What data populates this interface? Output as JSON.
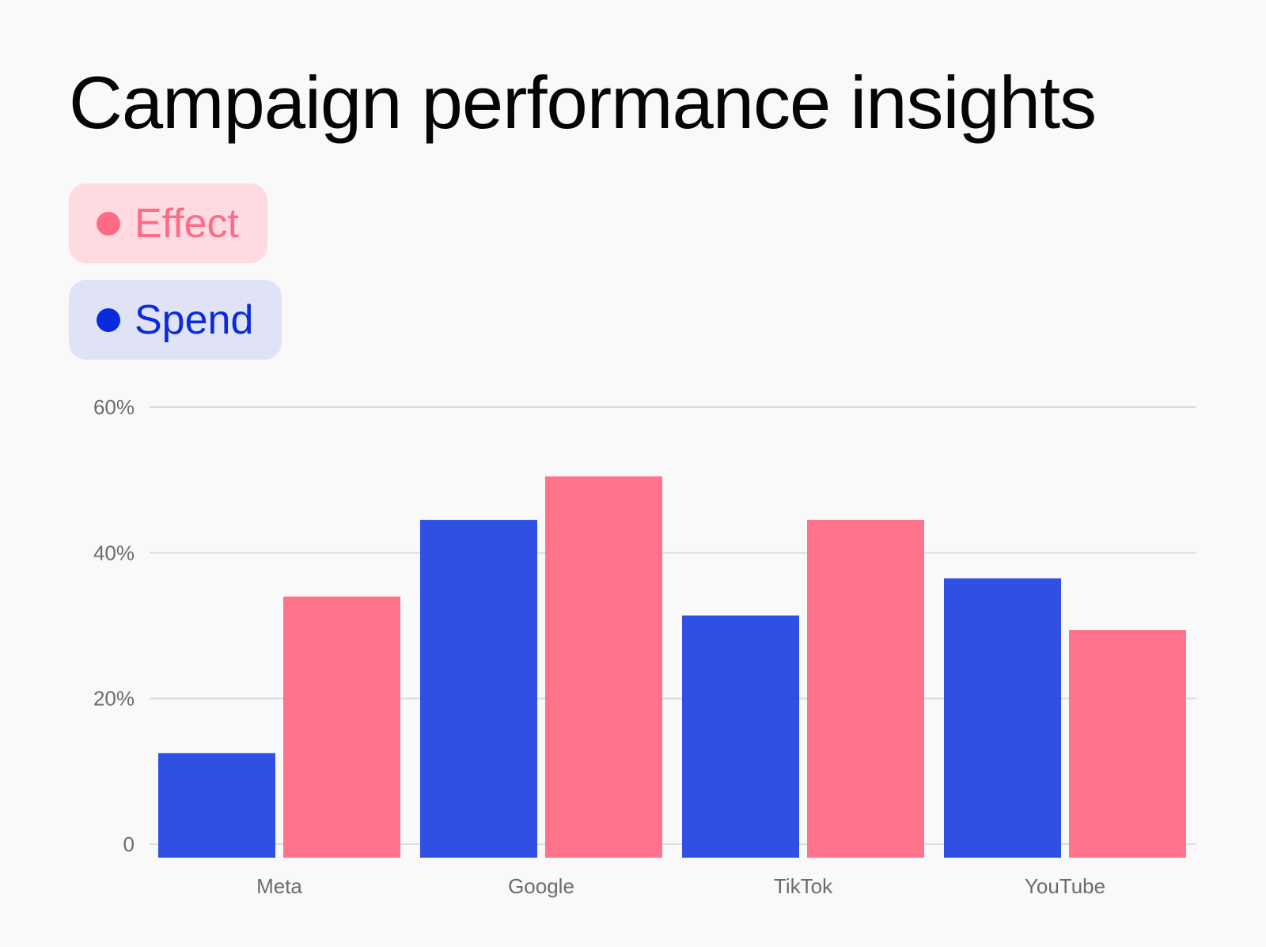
{
  "title": "Campaign performance insights",
  "legend": {
    "effect": {
      "label": "Effect",
      "color": "#ff6b87",
      "bg": "#ffdbe1"
    },
    "spend": {
      "label": "Spend",
      "color": "#0a2bdd",
      "bg": "#dfe3f5"
    }
  },
  "chart_data": {
    "type": "bar",
    "title": "Campaign performance insights",
    "categories": [
      "Meta",
      "Google",
      "TikTok",
      "YouTube"
    ],
    "series": [
      {
        "name": "Spend",
        "color": "#2447e2",
        "values": [
          12.5,
          44.5,
          31.4,
          36.5
        ]
      },
      {
        "name": "Effect",
        "color": "#ff6b87",
        "values": [
          34,
          50.5,
          44.5,
          29.4
        ]
      }
    ],
    "xlabel": "",
    "ylabel": "",
    "ylim": [
      0,
      60
    ],
    "yticks": [
      {
        "value": 0,
        "label": "0"
      },
      {
        "value": 20,
        "label": "20%"
      },
      {
        "value": 40,
        "label": "40%"
      },
      {
        "value": 60,
        "label": "60%"
      }
    ],
    "grid": true,
    "legend_position": "top-left"
  }
}
